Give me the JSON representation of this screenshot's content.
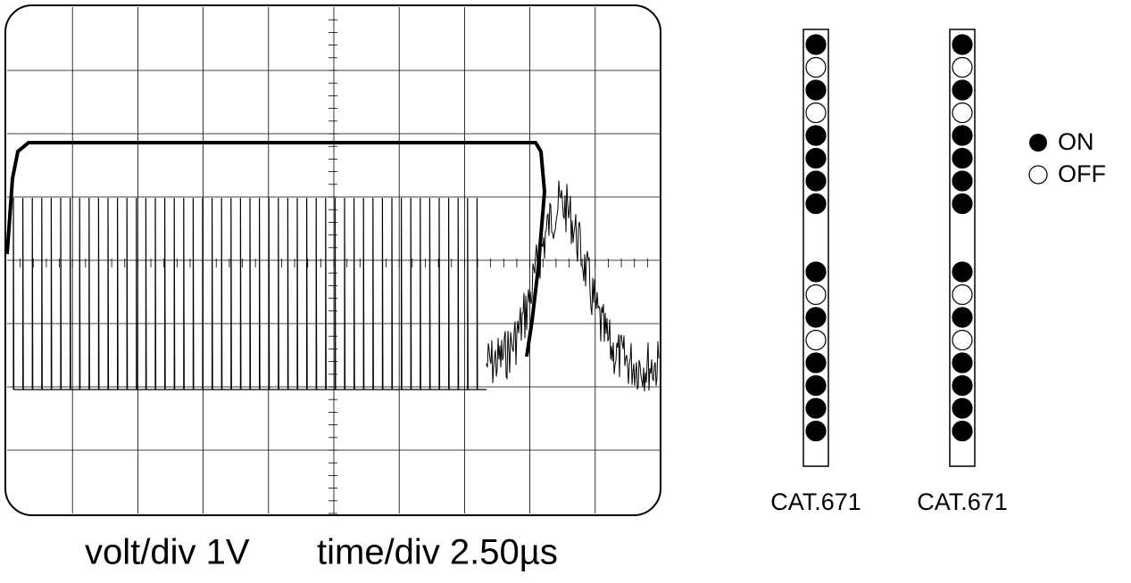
{
  "scope": {
    "volt_label": "volt/div 1V",
    "time_label": "time/div 2.50µs"
  },
  "switches": [
    {
      "label": "CAT.671",
      "states": [
        true,
        false,
        true,
        false,
        true,
        true,
        true,
        true,
        true,
        false,
        true,
        false,
        true,
        true,
        true,
        true
      ]
    },
    {
      "label": "CAT.671",
      "states": [
        true,
        false,
        true,
        false,
        true,
        true,
        true,
        true,
        true,
        false,
        true,
        false,
        true,
        true,
        true,
        true
      ]
    }
  ],
  "legend": {
    "on": "ON",
    "off": "OFF"
  }
}
